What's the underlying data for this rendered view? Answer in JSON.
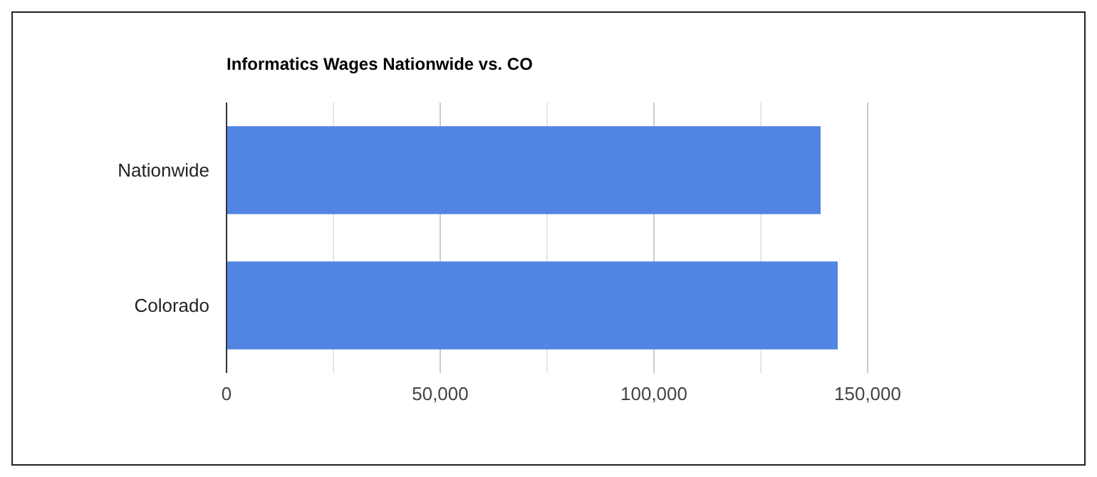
{
  "chart_data": {
    "type": "bar",
    "orientation": "horizontal",
    "title": "Informatics Wages Nationwide vs. CO",
    "categories": [
      "Nationwide",
      "Colorado"
    ],
    "values": [
      139000,
      143000
    ],
    "color": "#5285e3",
    "xlim": [
      0,
      150000
    ],
    "xticks": [
      0,
      {
        "value": 25000,
        "label": null
      },
      {
        "value": 50000,
        "label": "50,000"
      },
      {
        "value": 75000,
        "label": null
      },
      {
        "value": 100000,
        "label": "100,000"
      },
      {
        "value": 125000,
        "label": null
      },
      {
        "value": 150000,
        "label": "150,000"
      }
    ],
    "grid": true
  }
}
